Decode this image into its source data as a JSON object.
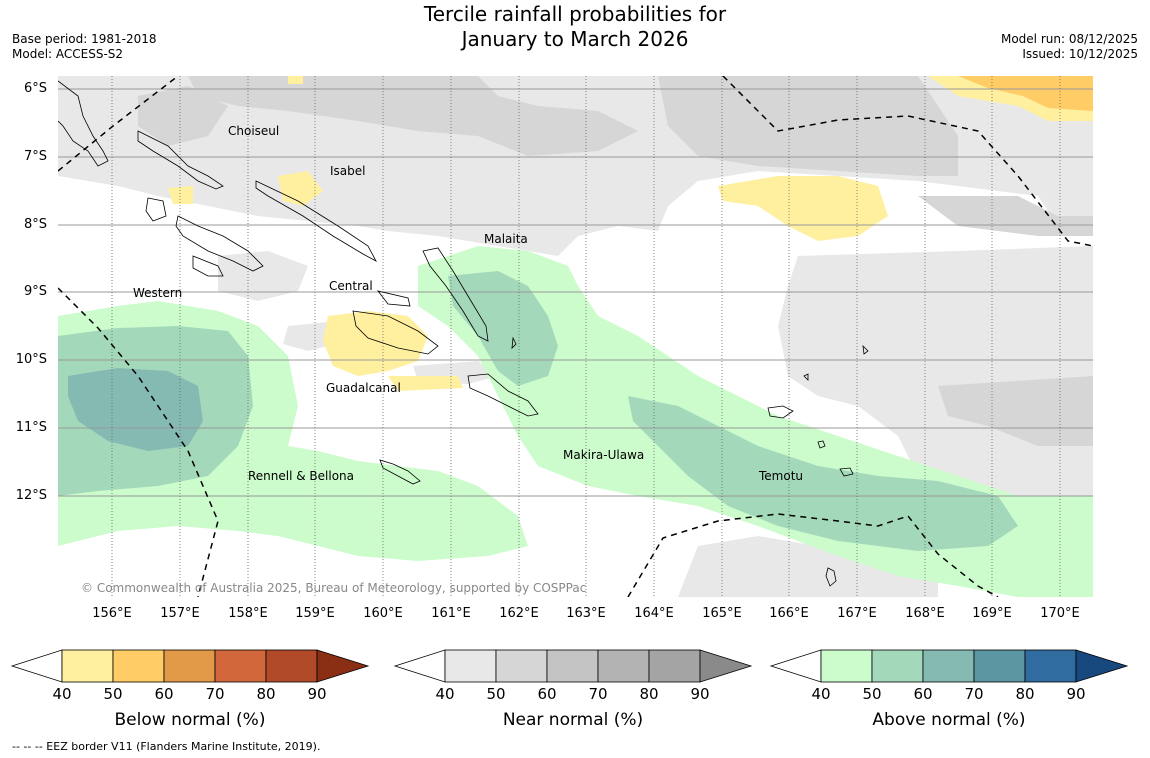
{
  "header": {
    "title_line1": "Tercile rainfall probabilities for",
    "title_line2": "January to March 2026",
    "base_period": "Base period: 1981-2018",
    "model": "Model: ACCESS-S2",
    "model_run": "Model run: 08/12/2025",
    "issued": "Issued: 10/12/2025"
  },
  "map": {
    "lat_labels": [
      "6°S",
      "7°S",
      "8°S",
      "9°S",
      "10°S",
      "11°S",
      "12°S"
    ],
    "lon_labels": [
      "156°E",
      "157°E",
      "158°E",
      "159°E",
      "160°E",
      "161°E",
      "162°E",
      "163°E",
      "164°E",
      "165°E",
      "166°E",
      "167°E",
      "168°E",
      "169°E",
      "170°E"
    ],
    "place_labels": [
      "Choiseul",
      "Isabel",
      "Malaita",
      "Western",
      "Central",
      "Guadalcanal",
      "Makira-Ulawa",
      "Temotu",
      "Rennell & Bellona"
    ],
    "copyright": "© Commonwealth of Australia 2025, Bureau of Meteorology, supported by COSPPac"
  },
  "colorbars": [
    {
      "title": "Below normal (%)",
      "ticks": [
        "40",
        "50",
        "60",
        "70",
        "80",
        "90"
      ],
      "colors": [
        "#fff0a0",
        "#ffcc66",
        "#e39a48",
        "#d1673a",
        "#b04a28",
        "#8a2e14"
      ]
    },
    {
      "title": "Near normal (%)",
      "ticks": [
        "40",
        "50",
        "60",
        "70",
        "80",
        "90"
      ],
      "colors": [
        "#e8e8e8",
        "#d6d6d6",
        "#c4c4c4",
        "#b3b3b3",
        "#a4a4a4",
        "#8a8a8a"
      ]
    },
    {
      "title": "Above normal (%)",
      "ticks": [
        "40",
        "50",
        "60",
        "70",
        "80",
        "90"
      ],
      "colors": [
        "#ccfccc",
        "#a4d8ba",
        "#84bab2",
        "#5c96a2",
        "#306ca0",
        "#17497e"
      ]
    }
  ],
  "legend_note": "--  --  -- EEZ border V11 (Flanders Marine Institute, 2019).",
  "colors": {
    "near40": "#e8e8e8",
    "near50": "#d6d6d6",
    "above40": "#ccfccc",
    "above50": "#a4d8ba",
    "above60": "#84bab2",
    "below40": "#fff0a0",
    "below50": "#ffcc66"
  }
}
